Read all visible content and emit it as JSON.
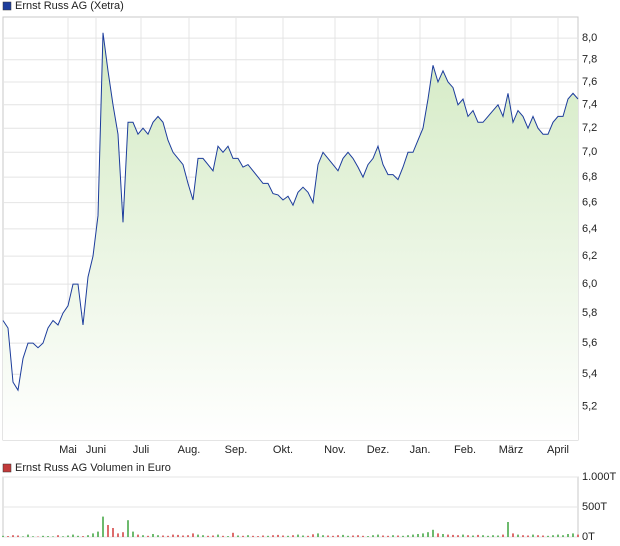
{
  "chart_data": [
    {
      "type": "line",
      "series": [
        {
          "name": "Ernst Russ AG (Xetra)",
          "color": "#1c3c9c",
          "values": [
            5.75,
            5.7,
            5.35,
            5.3,
            5.5,
            5.6,
            5.6,
            5.57,
            5.6,
            5.7,
            5.75,
            5.72,
            5.8,
            5.85,
            6.0,
            6.0,
            5.72,
            6.05,
            6.2,
            6.5,
            8.05,
            7.7,
            7.4,
            7.15,
            6.45,
            7.25,
            7.25,
            7.15,
            7.2,
            7.15,
            7.25,
            7.3,
            7.25,
            7.1,
            7.0,
            6.95,
            6.9,
            6.75,
            6.62,
            6.95,
            6.95,
            6.9,
            6.85,
            7.05,
            7.0,
            7.05,
            6.95,
            6.95,
            6.88,
            6.9,
            6.85,
            6.8,
            6.75,
            6.75,
            6.67,
            6.66,
            6.62,
            6.65,
            6.58,
            6.68,
            6.72,
            6.68,
            6.6,
            6.9,
            7.0,
            6.95,
            6.9,
            6.85,
            6.95,
            7.0,
            6.95,
            6.88,
            6.8,
            6.9,
            6.95,
            7.05,
            6.9,
            6.82,
            6.82,
            6.78,
            6.88,
            7.0,
            7.0,
            7.1,
            7.2,
            7.45,
            7.75,
            7.6,
            7.7,
            7.6,
            7.55,
            7.4,
            7.45,
            7.3,
            7.35,
            7.25,
            7.25,
            7.3,
            7.35,
            7.4,
            7.3,
            7.5,
            7.25,
            7.35,
            7.3,
            7.2,
            7.3,
            7.2,
            7.15,
            7.15,
            7.25,
            7.3,
            7.3,
            7.45,
            7.5,
            7.45
          ]
        }
      ],
      "area_color": "#d3eac3",
      "log_scale": true,
      "grid": true,
      "xlim": [
        0,
        115
      ],
      "xticks": [
        {
          "value": 13,
          "label": "Mai"
        },
        {
          "value": 18.6,
          "label": "Juni"
        },
        {
          "value": 27.6,
          "label": "Juli"
        },
        {
          "value": 37.2,
          "label": "Aug."
        },
        {
          "value": 46.6,
          "label": "Sep."
        },
        {
          "value": 56,
          "label": "Okt."
        },
        {
          "value": 66.4,
          "label": "Nov."
        },
        {
          "value": 75,
          "label": "Dez."
        },
        {
          "value": 83.4,
          "label": "Jan."
        },
        {
          "value": 92.4,
          "label": "Feb."
        },
        {
          "value": 101.6,
          "label": "März"
        },
        {
          "value": 111,
          "label": "April"
        }
      ],
      "ylim": [
        5.0,
        8.2
      ],
      "yticks": [
        {
          "value": 5.2,
          "label": "5,2"
        },
        {
          "value": 5.4,
          "label": "5,4"
        },
        {
          "value": 5.6,
          "label": "5,6"
        },
        {
          "value": 5.8,
          "label": "5,8"
        },
        {
          "value": 6.0,
          "label": "6,0"
        },
        {
          "value": 6.2,
          "label": "6,2"
        },
        {
          "value": 6.4,
          "label": "6,4"
        },
        {
          "value": 6.6,
          "label": "6,6"
        },
        {
          "value": 6.8,
          "label": "6,8"
        },
        {
          "value": 7.0,
          "label": "7,0"
        },
        {
          "value": 7.2,
          "label": "7,2"
        },
        {
          "value": 7.4,
          "label": "7,4"
        },
        {
          "value": 7.6,
          "label": "7,6"
        },
        {
          "value": 7.8,
          "label": "7,8"
        },
        {
          "value": 8.0,
          "label": "8,0"
        }
      ]
    },
    {
      "type": "bar",
      "series": [
        {
          "name": "Ernst Russ AG Volumen in Euro",
          "color": "#c23a3a",
          "values": [
            20,
            15,
            30,
            25,
            10,
            40,
            12,
            8,
            20,
            15,
            10,
            30,
            12,
            25,
            40,
            20,
            15,
            30,
            60,
            90,
            340,
            200,
            150,
            60,
            80,
            280,
            90,
            40,
            30,
            20,
            50,
            30,
            25,
            20,
            40,
            35,
            25,
            30,
            60,
            40,
            30,
            20,
            25,
            40,
            20,
            15,
            70,
            25,
            20,
            30,
            20,
            15,
            25,
            20,
            30,
            35,
            25,
            20,
            30,
            40,
            25,
            20,
            45,
            60,
            30,
            25,
            20,
            30,
            35,
            20,
            25,
            30,
            20,
            15,
            30,
            40,
            25,
            20,
            30,
            25,
            20,
            30,
            40,
            50,
            60,
            80,
            120,
            60,
            50,
            40,
            35,
            30,
            40,
            30,
            25,
            35,
            30,
            20,
            30,
            25,
            40,
            250,
            60,
            40,
            30,
            25,
            40,
            30,
            25,
            20,
            30,
            40,
            30,
            50,
            60,
            40
          ]
        }
      ],
      "up_color": "#3da33d",
      "down_color": "#d23c3c",
      "grid": true,
      "xlim": [
        0,
        115
      ],
      "ylim": [
        0,
        1000
      ],
      "yticks": [
        {
          "value": 0,
          "label": "0T"
        },
        {
          "value": 500,
          "label": "500T"
        },
        {
          "value": 1000,
          "label": "1.000T"
        }
      ]
    }
  ]
}
